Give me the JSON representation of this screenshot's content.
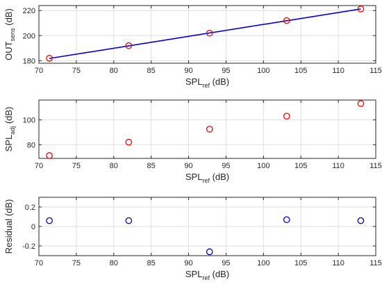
{
  "chart_data": [
    {
      "type": "scatter",
      "xlabel": {
        "main": "SPL",
        "sub": "ref",
        "unit": " (dB)"
      },
      "ylabel": {
        "main": "OUT",
        "sub": "sens",
        "unit": " (dB)"
      },
      "xlim": [
        70,
        115
      ],
      "ylim": [
        178,
        224
      ],
      "xticks": [
        70,
        75,
        80,
        85,
        90,
        95,
        100,
        105,
        110,
        115
      ],
      "yticks": [
        180,
        200,
        220
      ],
      "grid": true,
      "series": [
        {
          "kind": "markers",
          "marker": "circle",
          "color": "#ff0000",
          "x": [
            71.4,
            82.0,
            92.8,
            103.1,
            113.0
          ],
          "y": [
            182.0,
            192.0,
            202.0,
            212.0,
            221.3
          ]
        },
        {
          "kind": "line",
          "color": "#0000cc",
          "x": [
            71.4,
            113.0
          ],
          "y": [
            181.8,
            221.3
          ]
        }
      ]
    },
    {
      "type": "scatter",
      "xlabel": {
        "main": "SPL",
        "sub": "ref",
        "unit": " (dB)"
      },
      "ylabel": {
        "main": "SPL",
        "sub": "adj",
        "unit": " (dB)"
      },
      "xlim": [
        70,
        115
      ],
      "ylim": [
        69,
        116
      ],
      "xticks": [
        70,
        75,
        80,
        85,
        90,
        95,
        100,
        105,
        110,
        115
      ],
      "yticks": [
        80,
        100
      ],
      "grid": true,
      "series": [
        {
          "kind": "markers",
          "marker": "circle",
          "color": "#ff0000",
          "x": [
            71.4,
            82.0,
            92.8,
            103.1,
            113.0
          ],
          "y": [
            71.3,
            82.1,
            92.6,
            103.0,
            113.2
          ]
        }
      ]
    },
    {
      "type": "scatter",
      "xlabel": {
        "main": "SPL",
        "sub": "ref",
        "unit": " (dB)"
      },
      "ylabel": {
        "main": "Residual (dB)",
        "sub": "",
        "unit": ""
      },
      "xlim": [
        70,
        115
      ],
      "ylim": [
        -0.3,
        0.3
      ],
      "xticks": [
        70,
        75,
        80,
        85,
        90,
        95,
        100,
        105,
        110,
        115
      ],
      "yticks": [
        -0.2,
        0,
        0.2
      ],
      "grid": true,
      "series": [
        {
          "kind": "markers",
          "marker": "circle",
          "color": "#0000cc",
          "x": [
            71.4,
            82.0,
            92.8,
            103.1,
            113.0
          ],
          "y": [
            0.06,
            0.06,
            -0.26,
            0.07,
            0.06
          ]
        }
      ]
    }
  ]
}
